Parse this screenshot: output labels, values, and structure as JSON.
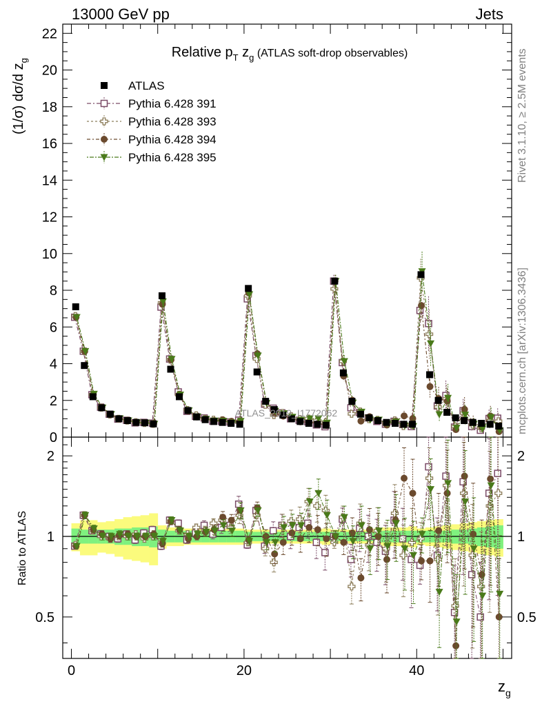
{
  "header": {
    "left": "13000 GeV pp",
    "right": "Jets"
  },
  "side_text": {
    "rivet": "Rivet 3.1.10, ≥ 2.5M events",
    "mcplots": "mcplots.cern.ch [arXiv:1306.3436]"
  },
  "chart_data": {
    "type": "scatter",
    "title_main": "Relative p",
    "title_sub1": "T",
    "title_mid": " z",
    "title_sub2": "g",
    "title_tail": " (ATLAS soft-drop observables)",
    "watermark": "ATLAS_2019_I1772062",
    "ylabel": "(1/σ) dσ/d z",
    "ylabel_sub": "g",
    "xlabel": "z",
    "xlabel_sub": "g",
    "ratio_ylabel": "Ratio to ATLAS",
    "xlim": [
      -1,
      51
    ],
    "ylim": [
      0,
      22.5
    ],
    "ratio_ylim": [
      0.35,
      2.35
    ],
    "ratio_log": true,
    "x_ticks": [
      "0",
      "20",
      "40"
    ],
    "y_ticks": [
      "0",
      "2",
      "4",
      "6",
      "8",
      "10",
      "12",
      "14",
      "16",
      "18",
      "20",
      "22"
    ],
    "ratio_ticks": [
      "0.5",
      "1",
      "2"
    ],
    "legend": [
      {
        "label": "ATLAS",
        "marker": "square-filled",
        "color": "#000000",
        "dash": ""
      },
      {
        "label": "Pythia 6.428 391",
        "marker": "square-open",
        "color": "#7a4a66",
        "dash": "6,3,2,3"
      },
      {
        "label": "Pythia 6.428 393",
        "marker": "cross-open",
        "color": "#8c7d5a",
        "dash": "3,3"
      },
      {
        "label": "Pythia 6.428 394",
        "marker": "circle-filled",
        "color": "#6b4a2e",
        "dash": "5,3,2,3"
      },
      {
        "label": "Pythia 6.428 395",
        "marker": "triangle-down",
        "color": "#4a7a1a",
        "dash": "2,2,6,2"
      }
    ],
    "x": [
      0.5,
      1.5,
      2.5,
      3.5,
      4.5,
      5.5,
      6.5,
      7.5,
      8.5,
      9.5,
      10.5,
      11.5,
      12.5,
      13.5,
      14.5,
      15.5,
      16.5,
      17.5,
      18.5,
      19.5,
      20.5,
      21.5,
      22.5,
      23.5,
      24.5,
      25.5,
      26.5,
      27.5,
      28.5,
      29.5,
      30.5,
      31.5,
      32.5,
      33.5,
      34.5,
      35.5,
      36.5,
      37.5,
      38.5,
      39.5,
      40.5,
      41.5,
      42.5,
      43.5,
      44.5,
      45.5,
      46.5,
      47.5,
      48.5,
      49.5
    ],
    "atlas": [
      7.1,
      3.9,
      2.2,
      1.6,
      1.25,
      1.0,
      0.9,
      0.8,
      0.78,
      0.72,
      7.7,
      3.7,
      2.2,
      1.45,
      1.1,
      0.95,
      0.85,
      0.8,
      0.75,
      0.7,
      8.1,
      3.55,
      1.95,
      1.5,
      1.2,
      1.0,
      0.85,
      0.75,
      0.7,
      0.65,
      8.5,
      3.5,
      1.95,
      1.25,
      1.05,
      0.9,
      0.8,
      0.75,
      0.7,
      0.7,
      8.85,
      3.4,
      2.0,
      1.35,
      1.05,
      0.9,
      0.8,
      0.75,
      0.7,
      0.6
    ],
    "ratio": {
      "s391": [
        0.92,
        1.2,
        1.05,
        1.02,
        1.0,
        0.98,
        1.02,
        0.97,
        1.03,
        1.06,
        0.92,
        1.15,
        1.12,
        0.97,
        1.03,
        1.1,
        1.02,
        1.08,
        1.1,
        1.32,
        0.93,
        1.25,
        0.92,
        1.05,
        1.1,
        1.0,
        1.08,
        1.12,
        0.95,
        0.87,
        1.0,
        1.16,
        0.82,
        1.07,
        1.0,
        0.95,
        0.88,
        1.15,
        0.98,
        0.82,
        0.78,
        1.82,
        0.85,
        1.68,
        0.52,
        1.6,
        0.72,
        0.5,
        1.45,
        1.72
      ],
      "s393": [
        0.93,
        1.2,
        1.05,
        1.0,
        0.98,
        1.0,
        1.0,
        1.02,
        0.98,
        1.0,
        0.95,
        1.14,
        1.05,
        1.02,
        1.08,
        1.05,
        1.12,
        1.15,
        1.08,
        1.2,
        0.95,
        1.2,
        0.9,
        0.8,
        1.1,
        1.14,
        1.16,
        1.35,
        1.3,
        1.25,
        0.95,
        1.18,
        0.65,
        1.12,
        0.93,
        1.05,
        0.9,
        1.22,
        0.85,
        0.95,
        0.98,
        1.65,
        0.82,
        1.55,
        0.55,
        1.45,
        0.85,
        0.65,
        1.3,
        1.45
      ],
      "s394": [
        0.92,
        1.2,
        1.06,
        1.02,
        0.98,
        1.01,
        1.02,
        1.0,
        1.0,
        1.02,
        0.94,
        1.14,
        1.06,
        0.98,
        1.0,
        1.04,
        1.06,
        1.18,
        1.15,
        1.25,
        0.97,
        1.28,
        1.0,
        0.86,
        0.95,
        1.03,
        0.98,
        1.08,
        1.06,
        0.98,
        1.0,
        0.95,
        1.03,
        0.7,
        1.06,
        1.0,
        0.82,
        1.15,
        1.65,
        1.45,
        0.81,
        0.81,
        1.05,
        1.45,
        0.39,
        1.68,
        1.02,
        0.72,
        1.64,
        0.5
      ],
      "s395": [
        0.92,
        1.2,
        1.07,
        1.0,
        1.0,
        1.02,
        1.0,
        1.0,
        1.0,
        1.0,
        0.96,
        1.15,
        1.05,
        1.0,
        1.02,
        1.04,
        1.05,
        1.1,
        1.05,
        1.25,
        0.96,
        1.25,
        0.95,
        0.95,
        1.08,
        1.1,
        1.1,
        1.35,
        1.45,
        1.2,
        1.0,
        1.18,
        0.96,
        1.1,
        0.9,
        1.05,
        0.92,
        1.12,
        0.9,
        0.85,
        1.02,
        1.5,
        0.62,
        1.58,
        0.48,
        1.35,
        0.9,
        0.6,
        1.55,
        0.61
      ]
    },
    "band_inner": [
      0.07,
      0.06,
      0.06,
      0.06,
      0.06,
      0.07,
      0.07,
      0.08,
      0.08,
      0.09,
      0.06,
      0.05,
      0.05,
      0.05,
      0.05,
      0.05,
      0.05,
      0.05,
      0.05,
      0.05,
      0.04,
      0.04,
      0.04,
      0.04,
      0.04,
      0.04,
      0.04,
      0.04,
      0.04,
      0.04,
      0.04,
      0.04,
      0.04,
      0.04,
      0.04,
      0.05,
      0.05,
      0.05,
      0.05,
      0.05,
      0.05,
      0.05,
      0.05,
      0.05,
      0.06,
      0.06,
      0.07,
      0.08,
      0.09,
      0.1
    ],
    "band_outer": [
      0.12,
      0.15,
      0.15,
      0.13,
      0.14,
      0.16,
      0.18,
      0.19,
      0.2,
      0.22,
      0.1,
      0.08,
      0.08,
      0.07,
      0.07,
      0.07,
      0.07,
      0.07,
      0.07,
      0.07,
      0.06,
      0.06,
      0.06,
      0.06,
      0.06,
      0.06,
      0.06,
      0.06,
      0.06,
      0.07,
      0.06,
      0.06,
      0.06,
      0.06,
      0.06,
      0.07,
      0.08,
      0.08,
      0.08,
      0.09,
      0.07,
      0.08,
      0.09,
      0.1,
      0.11,
      0.12,
      0.13,
      0.14,
      0.15,
      0.16
    ],
    "ratio_err": [
      0.02,
      0.03,
      0.03,
      0.03,
      0.03,
      0.03,
      0.03,
      0.03,
      0.03,
      0.03,
      0.03,
      0.03,
      0.03,
      0.03,
      0.03,
      0.04,
      0.04,
      0.05,
      0.05,
      0.07,
      0.03,
      0.05,
      0.06,
      0.08,
      0.1,
      0.1,
      0.11,
      0.12,
      0.13,
      0.14,
      0.05,
      0.1,
      0.14,
      0.18,
      0.2,
      0.22,
      0.25,
      0.28,
      0.3,
      0.34,
      0.15,
      0.3,
      0.38,
      0.45,
      0.5,
      0.55,
      0.55,
      0.6,
      0.6,
      0.65
    ],
    "colors": {
      "band_inner": "#7ff17f",
      "band_outer": "#fbfb7d",
      "s391": "#7a4a66",
      "s393": "#8c7d5a",
      "s394": "#6b4a2e",
      "s395": "#4a7a1a"
    }
  }
}
